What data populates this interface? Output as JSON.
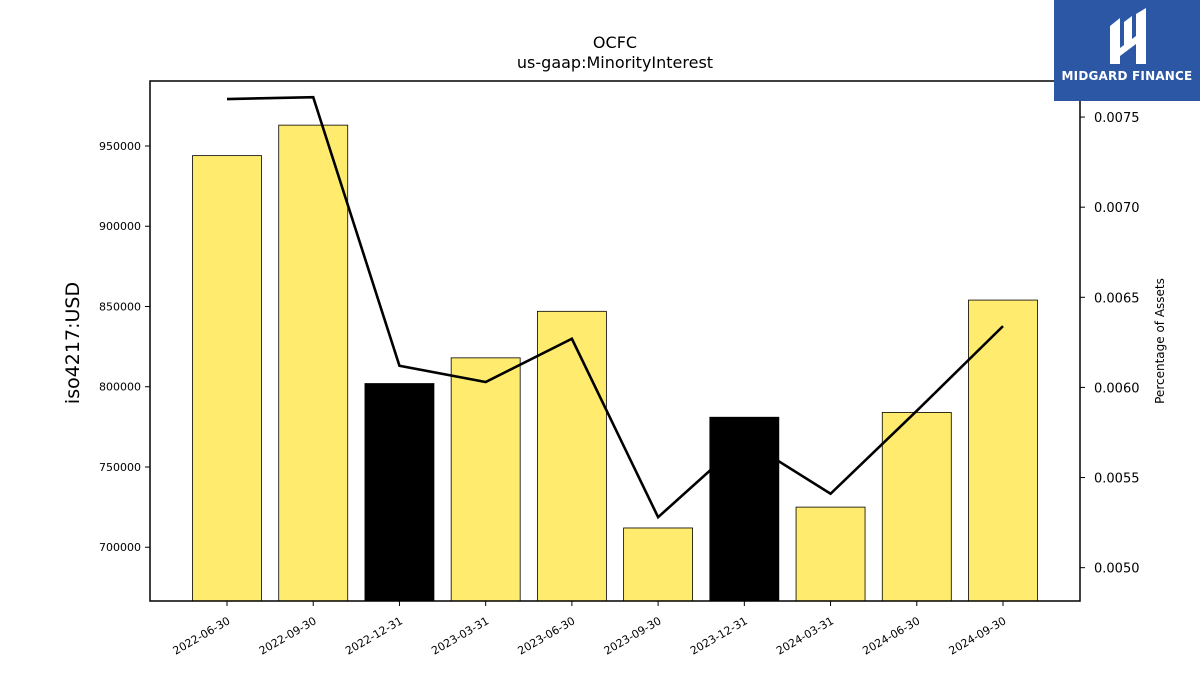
{
  "chart_data": {
    "type": "bar",
    "title": "OCFC",
    "subtitle": "us-gaap:MinorityInterest",
    "ylabel": "iso4217:USD",
    "y2label": "Percentage of Assets",
    "categories": [
      "2022-06-30",
      "2022-09-30",
      "2022-12-31",
      "2023-03-31",
      "2023-06-30",
      "2023-09-30",
      "2023-12-31",
      "2024-03-31",
      "2024-06-30",
      "2024-09-30"
    ],
    "series": [
      {
        "values": [
          944000,
          963000,
          802000,
          818000,
          847000,
          712000,
          781000,
          725000,
          784000,
          854000
        ],
        "colors": [
          "#ffec6e",
          "#ffec6e",
          "#000000",
          "#ffec6e",
          "#ffec6e",
          "#ffec6e",
          "#000000",
          "#ffec6e",
          "#ffec6e",
          "#ffec6e"
        ]
      },
      {
        "type": "line",
        "axis": "right",
        "values": [
          0.0076,
          0.00761,
          0.00612,
          0.00603,
          0.00627,
          0.00528,
          0.00571,
          0.00541,
          0.00587,
          0.00634
        ],
        "color": "#000000"
      }
    ],
    "ylim": [
      666500,
      990500
    ],
    "y2lim": [
      0.004815,
      0.0077
    ],
    "yticks": [
      700000,
      750000,
      800000,
      850000,
      900000,
      950000
    ],
    "y2ticks": [
      "0.0050",
      "0.0055",
      "0.0060",
      "0.0065",
      "0.0070",
      "0.0075"
    ],
    "grid": false
  },
  "logo": {
    "text": "MIDGARD FINANCE",
    "color": "#2c57a5"
  }
}
